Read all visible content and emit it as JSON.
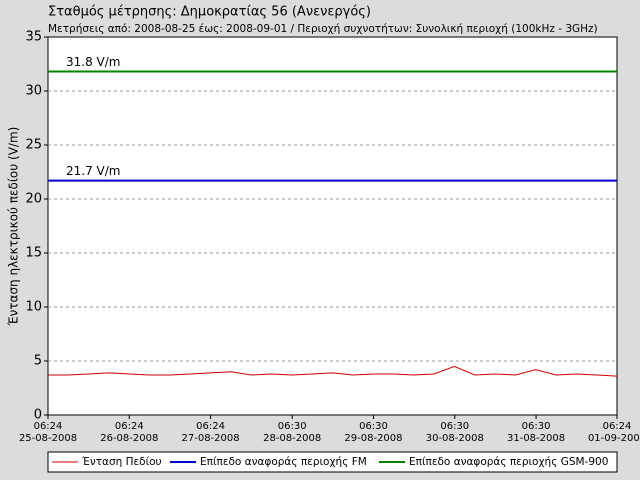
{
  "chart_data": {
    "type": "line",
    "title": "Σταθμός μέτρησης: Δημοκρατίας 56 (Ανενεργός)",
    "subtitle": "Μετρήσεις από: 2008-08-25 έως: 2008-09-01 / Περιοχή συχνοτήτων: Συνολική περιοχή (100kHz - 3GHz)",
    "y_label": "Ένταση ηλεκτρικού πεδίου (V/m)",
    "ylim": [
      0,
      35
    ],
    "yticks": [
      0,
      5,
      10,
      15,
      20,
      25,
      30,
      35
    ],
    "xlim": [
      "2008-08-25T06:24",
      "2008-09-01T06:24"
    ],
    "xticks": [
      {
        "value": "2008-08-25T06:24",
        "label": "06:24 25-08-2008"
      },
      {
        "value": "2008-08-26T06:24",
        "label": "06:24 26-08-2008"
      },
      {
        "value": "2008-08-27T06:24",
        "label": "06:24 27-08-2008"
      },
      {
        "value": "2008-08-28T06:30",
        "label": "06:30 28-08-2008"
      },
      {
        "value": "2008-08-29T06:30",
        "label": "06:30 29-08-2008"
      },
      {
        "value": "2008-08-30T06:30",
        "label": "06:30 30-08-2008"
      },
      {
        "value": "2008-08-31T06:30",
        "label": "06:30 31-08-2008"
      },
      {
        "value": "2008-09-01T06:24",
        "label": "06:24 01-09-2008"
      }
    ],
    "grid": true,
    "x": [
      "2008-08-25T06:24",
      "2008-08-25T12:24",
      "2008-08-25T18:24",
      "2008-08-26T00:24",
      "2008-08-26T06:24",
      "2008-08-26T12:24",
      "2008-08-26T18:24",
      "2008-08-27T00:24",
      "2008-08-27T06:24",
      "2008-08-27T12:24",
      "2008-08-27T18:24",
      "2008-08-28T00:24",
      "2008-08-28T06:24",
      "2008-08-28T12:24",
      "2008-08-28T18:24",
      "2008-08-29T00:24",
      "2008-08-29T06:24",
      "2008-08-29T12:24",
      "2008-08-29T18:24",
      "2008-08-30T00:24",
      "2008-08-30T06:24",
      "2008-08-30T12:24",
      "2008-08-30T18:24",
      "2008-08-31T00:24",
      "2008-08-31T06:24",
      "2008-08-31T12:24",
      "2008-08-31T18:24",
      "2008-09-01T00:24",
      "2008-09-01T06:24"
    ],
    "series": [
      {
        "name": "Ένταση Πεδίου",
        "color": "#cc0000",
        "values": [
          3.7,
          3.7,
          3.8,
          3.9,
          3.8,
          3.7,
          3.7,
          3.8,
          3.9,
          4.0,
          3.7,
          3.8,
          3.7,
          3.8,
          3.9,
          3.7,
          3.8,
          3.8,
          3.7,
          3.8,
          4.5,
          3.7,
          3.8,
          3.7,
          4.2,
          3.7,
          3.8,
          3.7,
          3.6
        ]
      },
      {
        "name": "Επίπεδο αναφοράς περιοχής FM",
        "color": "#0000cc",
        "value": 21.7,
        "label": "21.7 V/m"
      },
      {
        "name": "Επίπεδο αναφοράς περιοχής GSM-900",
        "color": "#008000",
        "value": 31.8,
        "label": "31.8 V/m"
      }
    ]
  }
}
